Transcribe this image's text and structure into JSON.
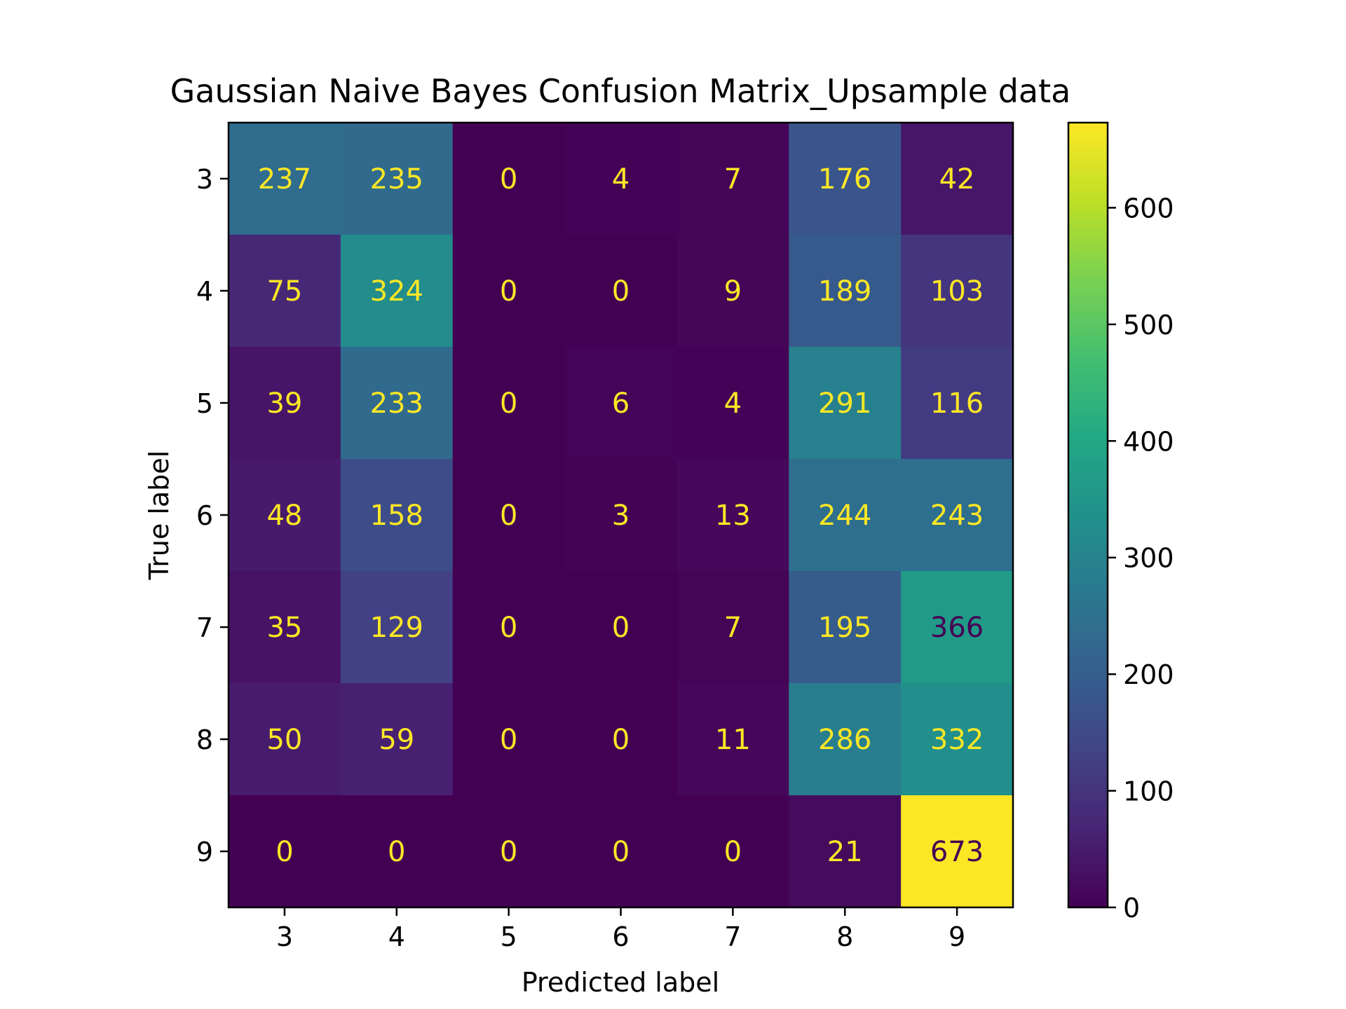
{
  "chart_data": {
    "type": "heatmap",
    "title": "Gaussian Naive Bayes Confusion Matrix_Upsample data",
    "xlabel": "Predicted label",
    "ylabel": "True label",
    "x_categories": [
      "3",
      "4",
      "5",
      "6",
      "7",
      "8",
      "9"
    ],
    "y_categories": [
      "3",
      "4",
      "5",
      "6",
      "7",
      "8",
      "9"
    ],
    "values": [
      [
        237,
        235,
        0,
        4,
        7,
        176,
        42
      ],
      [
        75,
        324,
        0,
        0,
        9,
        189,
        103
      ],
      [
        39,
        233,
        0,
        6,
        4,
        291,
        116
      ],
      [
        48,
        158,
        0,
        3,
        13,
        244,
        243
      ],
      [
        35,
        129,
        0,
        0,
        7,
        195,
        366
      ],
      [
        50,
        59,
        0,
        0,
        11,
        286,
        332
      ],
      [
        0,
        0,
        0,
        0,
        0,
        21,
        673
      ]
    ],
    "colormap": "viridis",
    "colorbar": {
      "range": [
        0,
        673
      ],
      "ticks": [
        "0",
        "100",
        "200",
        "300",
        "400",
        "500",
        "600"
      ],
      "tick_values": [
        0,
        100,
        200,
        300,
        400,
        500,
        600
      ]
    },
    "label_colors": {
      "on_dark": "#fde725",
      "on_light": "#440154"
    }
  }
}
